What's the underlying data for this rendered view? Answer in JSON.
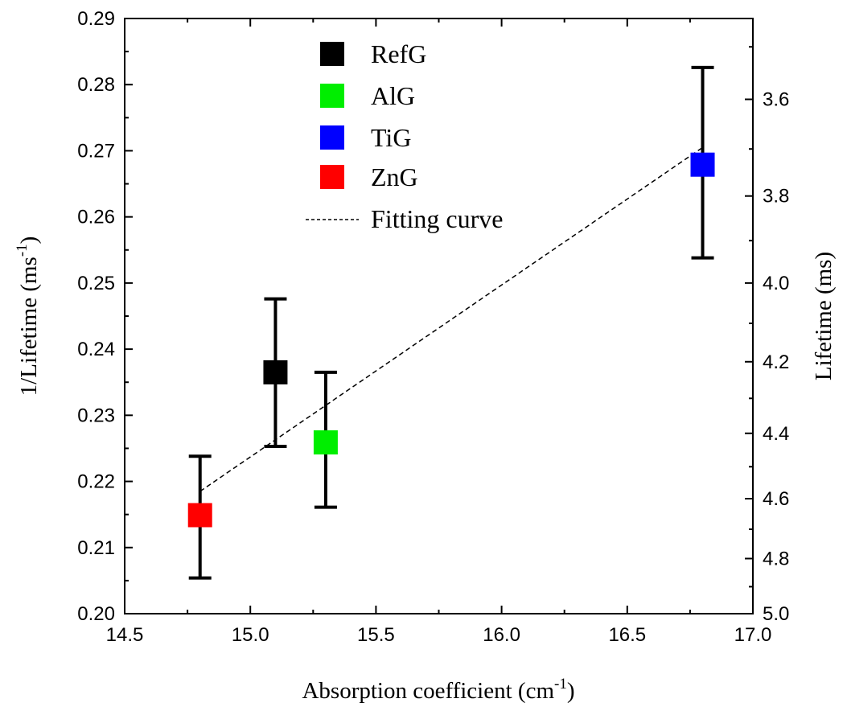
{
  "chart_data": {
    "type": "scatter",
    "title": "",
    "xlabel": "Absorption coefficient (cm",
    "xlabel_sup": "-1",
    "xlabel_end": ")",
    "ylabel": "1/Lifetime (ms",
    "ylabel_sup": "-1",
    "ylabel_end": ")",
    "y2label": "Lifetime (ms)",
    "xlim": [
      14.5,
      17.0
    ],
    "ylim": [
      0.2,
      0.29
    ],
    "y2lim_display": [
      5.0,
      3.5
    ],
    "x_ticks": [
      "14.5",
      "15.0",
      "15.5",
      "16.0",
      "16.5",
      "17.0"
    ],
    "y_ticks": [
      "0.20",
      "0.21",
      "0.22",
      "0.23",
      "0.24",
      "0.25",
      "0.26",
      "0.27",
      "0.28",
      "0.29"
    ],
    "y2_ticks": [
      "3.6",
      "3.8",
      "4.0",
      "4.2",
      "4.4",
      "4.6",
      "4.8",
      "5.0"
    ],
    "legend_position": "top-center",
    "grid": false,
    "series": [
      {
        "name": "RefG",
        "color": "#000000",
        "x": 15.1,
        "y": 0.2365,
        "yerr_low": 0.2253,
        "yerr_high": 0.2476
      },
      {
        "name": "AlG",
        "color": "#00ee00",
        "x": 15.3,
        "y": 0.2259,
        "yerr_low": 0.2161,
        "yerr_high": 0.2365
      },
      {
        "name": "TiG",
        "color": "#0000ff",
        "x": 16.8,
        "y": 0.2679,
        "yerr_low": 0.2538,
        "yerr_high": 0.2826
      },
      {
        "name": "ZnG",
        "color": "#ff0000",
        "x": 14.8,
        "y": 0.2149,
        "yerr_low": 0.2054,
        "yerr_high": 0.2238
      }
    ],
    "fit_line": {
      "name": "Fitting curve",
      "x": [
        14.8,
        16.8
      ],
      "y": [
        0.2185,
        0.2705
      ]
    }
  }
}
